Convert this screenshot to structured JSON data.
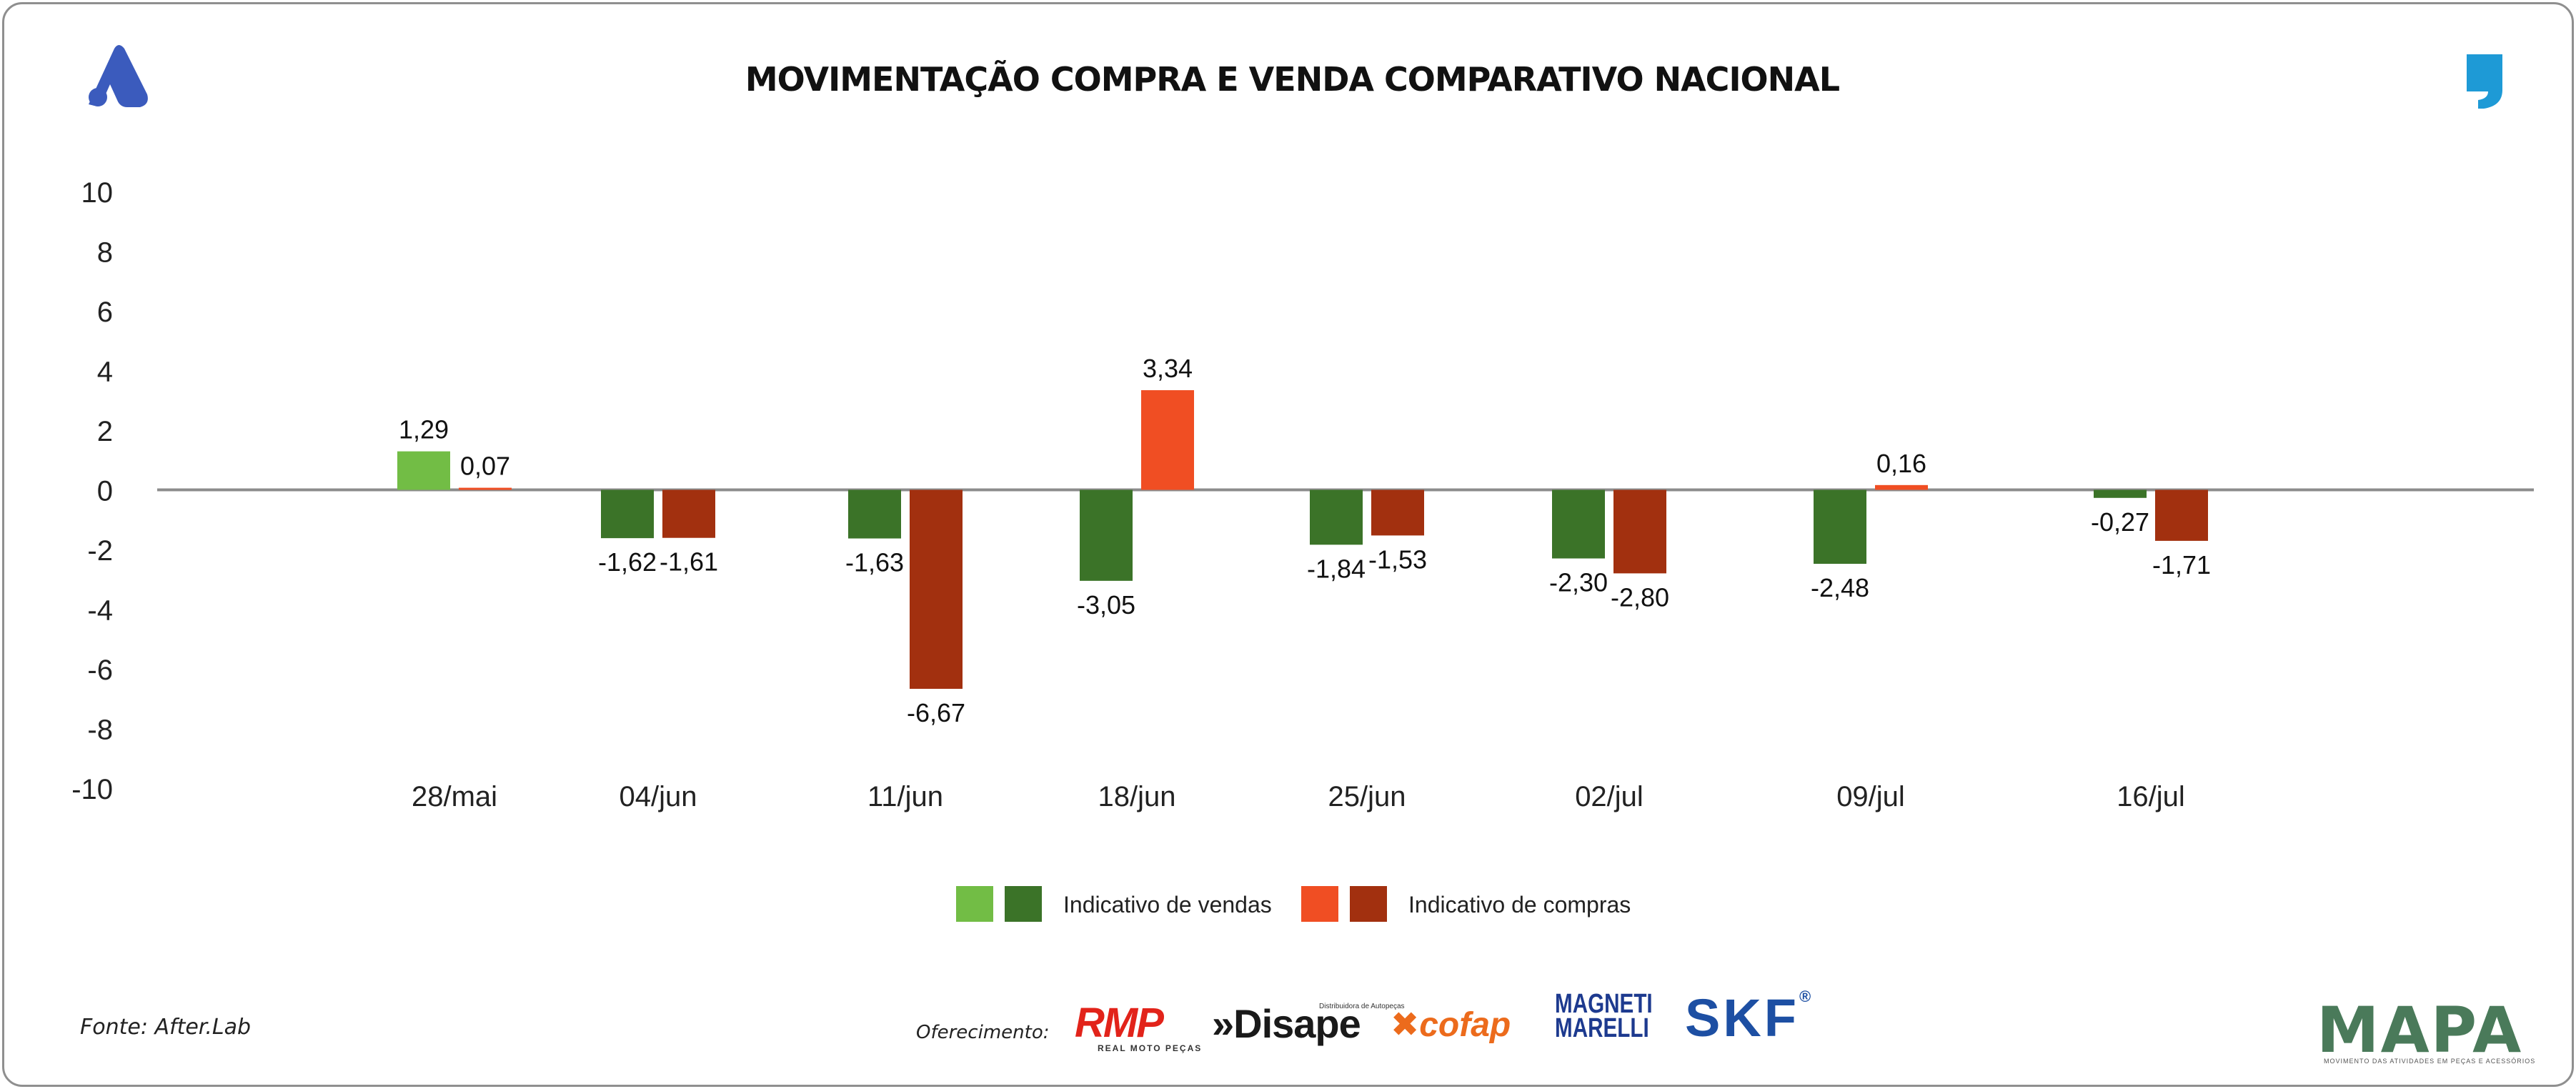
{
  "title": "MOVIMENTAÇÃO COMPRA E VENDA COMPARATIVO NACIONAL",
  "chart_data": {
    "type": "bar",
    "title": "MOVIMENTAÇÃO COMPRA E VENDA COMPARATIVO NACIONAL",
    "xlabel": "",
    "ylabel": "",
    "ylim": [
      -10,
      10
    ],
    "y_ticks": [
      "10",
      "8",
      "6",
      "4",
      "2",
      "0",
      "-2",
      "-4",
      "-6",
      "-8",
      "-10"
    ],
    "categories": [
      "28/mai",
      "04/jun",
      "11/jun",
      "18/jun",
      "25/jun",
      "02/jul",
      "09/jul",
      "16/jul"
    ],
    "series": [
      {
        "name": "Indicativo de vendas",
        "values": [
          1.29,
          -1.62,
          -1.63,
          -3.05,
          -1.84,
          -2.3,
          -2.48,
          -0.27
        ],
        "labels": [
          "1,29",
          "-1,62",
          "-1,63",
          "-3,05",
          "-1,84",
          "-2,30",
          "-2,48",
          "-0,27"
        ],
        "color_positive": "#72bd45",
        "color_negative": "#3b7328"
      },
      {
        "name": "Indicativo de compras",
        "values": [
          0.07,
          -1.61,
          -6.67,
          3.34,
          -1.53,
          -2.8,
          0.16,
          -1.71
        ],
        "labels": [
          "0,07",
          "-1,61",
          "-6,67",
          "3,34",
          "-1,53",
          "-2,80",
          "0,16",
          "-1,71"
        ],
        "color_positive": "#f04e23",
        "color_negative": "#a2300f"
      }
    ],
    "legend": {
      "position": "bottom-center",
      "entries": [
        {
          "label": "Indicativo de vendas",
          "colors": [
            "#72bd45",
            "#3b7328"
          ]
        },
        {
          "label": "Indicativo de compras",
          "colors": [
            "#f04e23",
            "#a2300f"
          ]
        }
      ]
    },
    "grid": false
  },
  "footer": {
    "source": "Fonte: After.Lab",
    "sponsor_label": "Oferecimento:",
    "sponsors": [
      {
        "name": "RMP",
        "subtitle": "REAL MOTO PEÇAS",
        "color": "#e2231a"
      },
      {
        "name": "»Disape",
        "subtitle": "Distribuidora de Autopeças",
        "color": "#1a1a1a"
      },
      {
        "name": "cofap",
        "color": "#ec6b1c"
      },
      {
        "name": "MAGNETI MARELLI",
        "color": "#1d3a8f"
      },
      {
        "name": "SKF",
        "color": "#1d4fa3"
      }
    ],
    "mapa_logo": "MAPA",
    "mapa_subtitle": "MOVIMENTO DAS ATIVIDADES EM PEÇAS E ACESSÓRIOS"
  },
  "icons": {
    "brand_logo": "afterlab-logo-icon",
    "quote_icon": "quote-icon"
  },
  "colors": {
    "brand_blue": "#3b5bbd",
    "quote_blue": "#1e9ad6",
    "axis": "#8c8c8c"
  }
}
